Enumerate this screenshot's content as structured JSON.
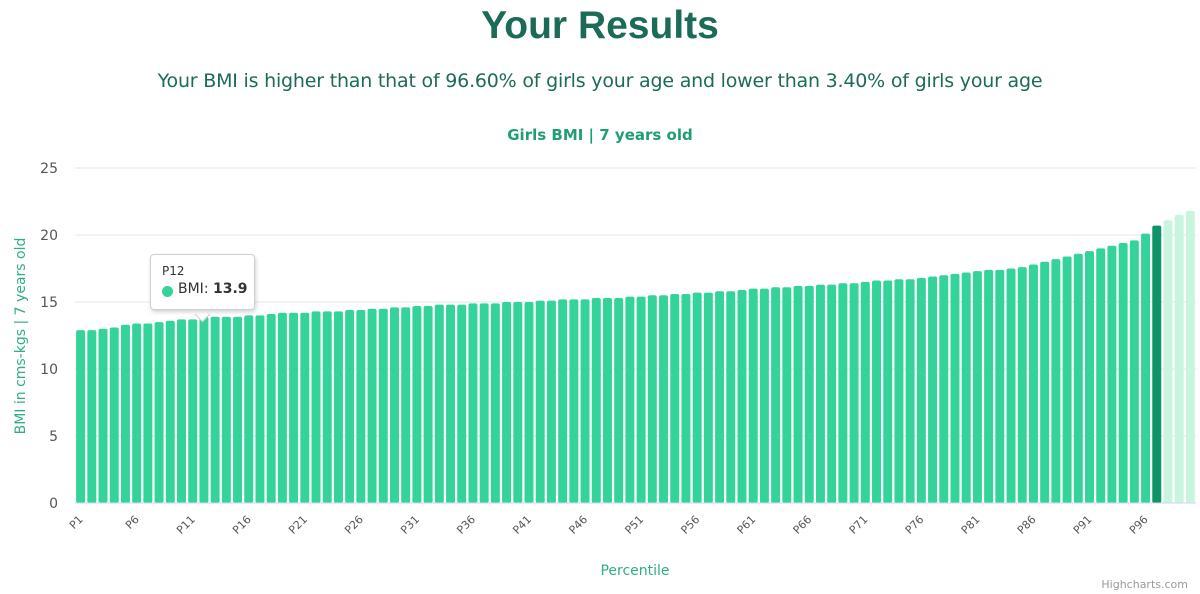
{
  "header": {
    "title": "Your Results",
    "summary": "Your BMI is higher than that of 96.60% of girls your age and lower than 3.40% of girls your age"
  },
  "credit": "Highcharts.com",
  "colors": {
    "title": "#1c6b58",
    "bar": "#34d399",
    "bar_highlight": "#0e9466",
    "bar_faded": "#c9f5de",
    "grid": "#e6e6e6",
    "axis_title": "#2fae85"
  },
  "tooltip": {
    "header": "P12",
    "series_label": "BMI",
    "value": "13.9"
  },
  "chart_data": {
    "type": "bar",
    "title": "Girls BMI | 7 years old",
    "xlabel": "Percentile",
    "ylabel": "BMI in cms-kgs | 7 years old",
    "ylim": [
      0,
      25
    ],
    "yticks": [
      0,
      5,
      10,
      15,
      20,
      25
    ],
    "grid": true,
    "legend": "none",
    "categories": [
      "P1",
      "P2",
      "P3",
      "P4",
      "P5",
      "P6",
      "P7",
      "P8",
      "P9",
      "P10",
      "P11",
      "P12",
      "P13",
      "P14",
      "P15",
      "P16",
      "P17",
      "P18",
      "P19",
      "P20",
      "P21",
      "P22",
      "P23",
      "P24",
      "P25",
      "P26",
      "P27",
      "P28",
      "P29",
      "P30",
      "P31",
      "P32",
      "P33",
      "P34",
      "P35",
      "P36",
      "P37",
      "P38",
      "P39",
      "P40",
      "P41",
      "P42",
      "P43",
      "P44",
      "P45",
      "P46",
      "P47",
      "P48",
      "P49",
      "P50",
      "P51",
      "P52",
      "P53",
      "P54",
      "P55",
      "P56",
      "P57",
      "P58",
      "P59",
      "P60",
      "P61",
      "P62",
      "P63",
      "P64",
      "P65",
      "P66",
      "P67",
      "P68",
      "P69",
      "P70",
      "P71",
      "P72",
      "P73",
      "P74",
      "P75",
      "P76",
      "P77",
      "P78",
      "P79",
      "P80",
      "P81",
      "P82",
      "P83",
      "P84",
      "P85",
      "P86",
      "P87",
      "P88",
      "P89",
      "P90",
      "P91",
      "P92",
      "P93",
      "P94",
      "P95",
      "P96",
      "P97",
      "P98",
      "P99",
      "P100"
    ],
    "visible_tick_labels": [
      "P1",
      "P6",
      "P11",
      "P16",
      "P21",
      "P26",
      "P31",
      "P36",
      "P41",
      "P46",
      "P51",
      "P56",
      "P61",
      "P66",
      "P71",
      "P76",
      "P81",
      "P86",
      "P91",
      "P96"
    ],
    "values": [
      12.9,
      12.9,
      13.0,
      13.1,
      13.3,
      13.4,
      13.4,
      13.5,
      13.6,
      13.7,
      13.7,
      13.9,
      13.9,
      13.9,
      13.9,
      14.0,
      14.0,
      14.1,
      14.2,
      14.2,
      14.2,
      14.3,
      14.3,
      14.3,
      14.4,
      14.4,
      14.5,
      14.5,
      14.6,
      14.6,
      14.7,
      14.7,
      14.8,
      14.8,
      14.8,
      14.9,
      14.9,
      14.9,
      15.0,
      15.0,
      15.0,
      15.1,
      15.1,
      15.2,
      15.2,
      15.2,
      15.3,
      15.3,
      15.3,
      15.4,
      15.4,
      15.5,
      15.5,
      15.6,
      15.6,
      15.7,
      15.7,
      15.8,
      15.8,
      15.9,
      16.0,
      16.0,
      16.1,
      16.1,
      16.2,
      16.2,
      16.3,
      16.3,
      16.4,
      16.4,
      16.5,
      16.6,
      16.6,
      16.7,
      16.7,
      16.8,
      16.9,
      17.0,
      17.1,
      17.2,
      17.3,
      17.4,
      17.4,
      17.5,
      17.6,
      17.8,
      18.0,
      18.2,
      18.4,
      18.6,
      18.8,
      19.0,
      19.2,
      19.4,
      19.6,
      20.1,
      20.7,
      21.1,
      21.5,
      21.8
    ],
    "highlight_index": 96,
    "faded_from_index": 97,
    "tooltip_index": 11
  }
}
